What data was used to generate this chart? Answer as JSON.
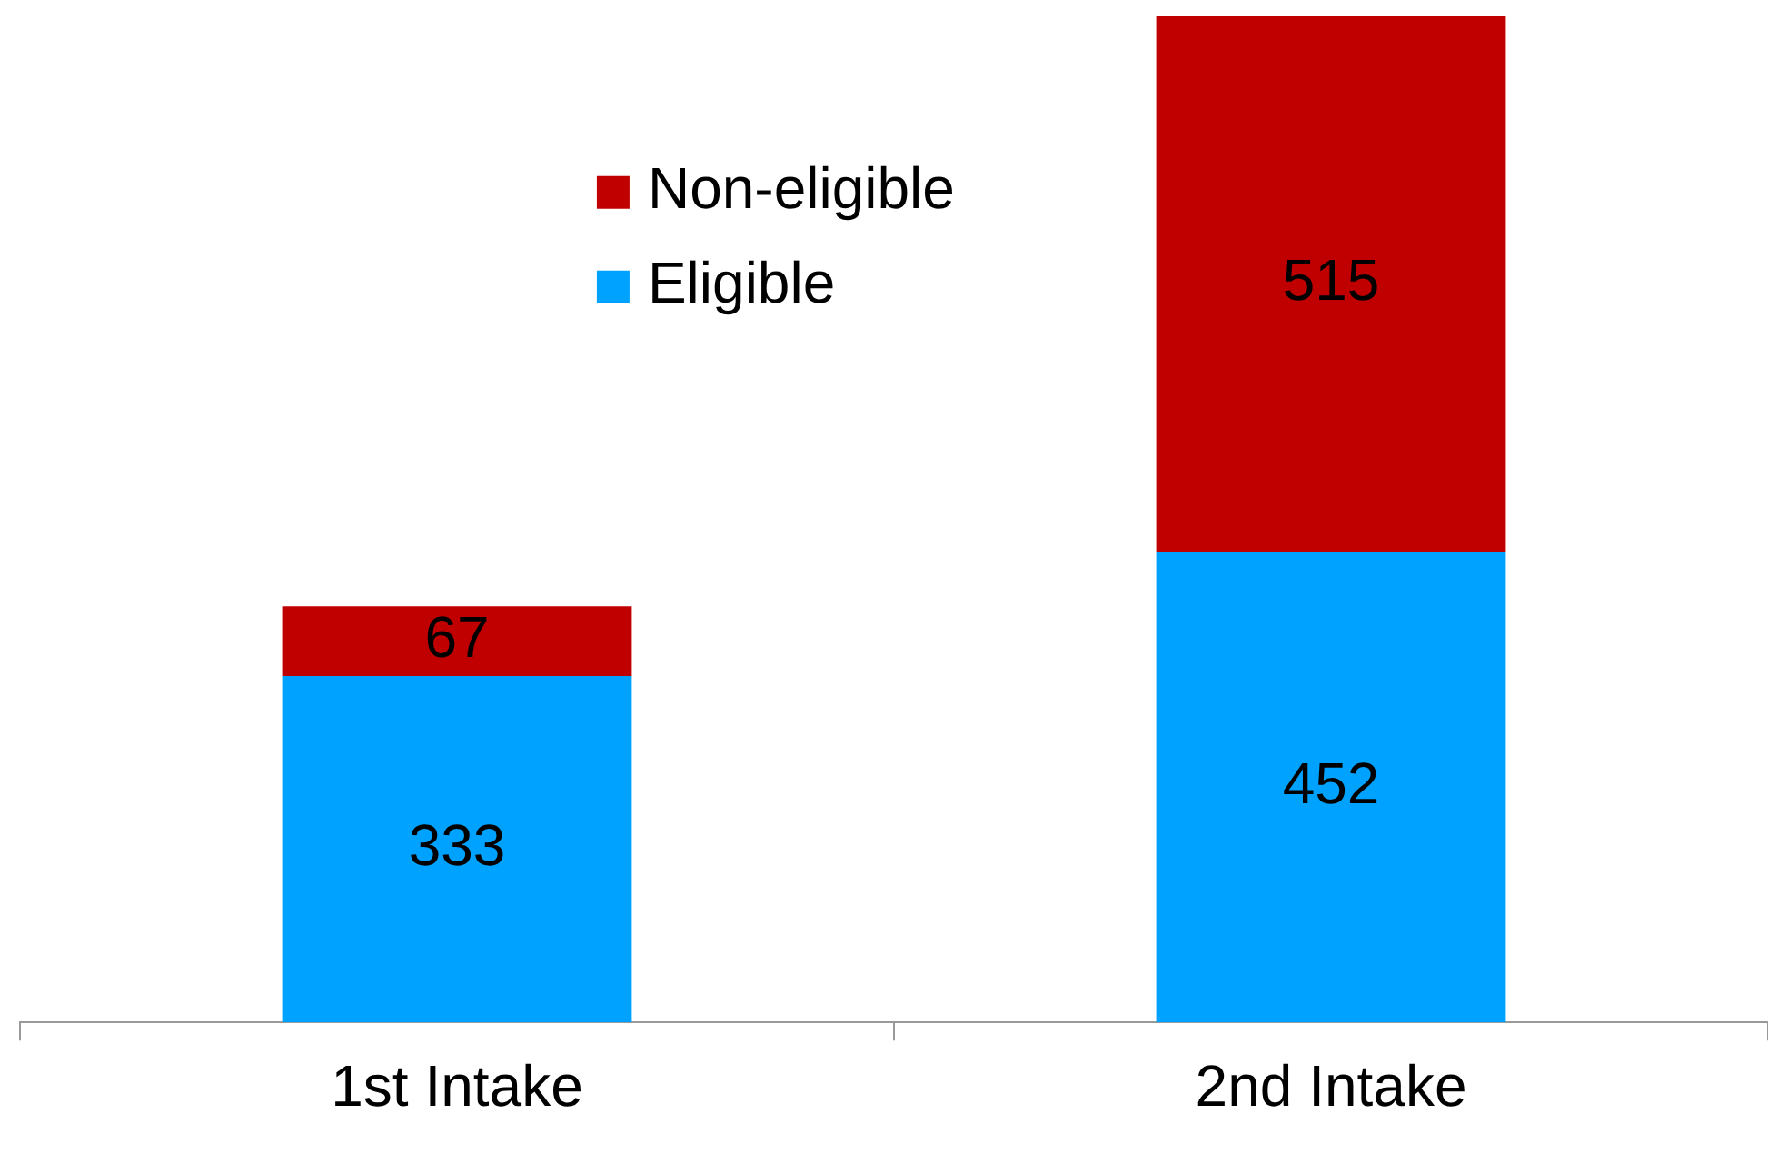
{
  "chart_data": {
    "type": "bar",
    "stacked": true,
    "categories": [
      "1st Intake",
      "2nd Intake"
    ],
    "series": [
      {
        "name": "Eligible",
        "color": "#00a2ff",
        "values": [
          333,
          452
        ]
      },
      {
        "name": "Non-eligible",
        "color": "#c00000",
        "values": [
          67,
          515
        ]
      }
    ],
    "ylim": [
      0,
      967
    ],
    "data_labels": true,
    "legend": "top left",
    "grid": false
  }
}
